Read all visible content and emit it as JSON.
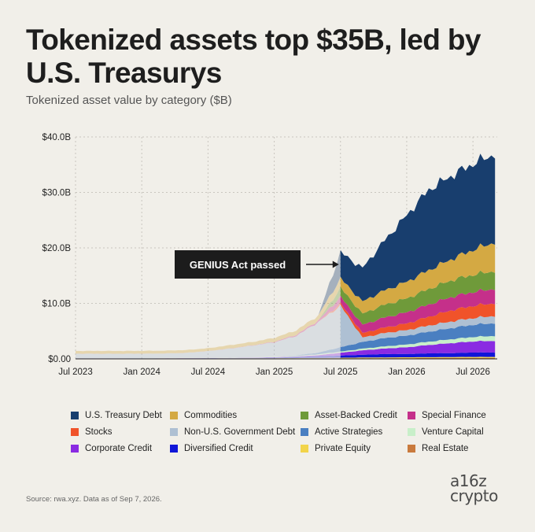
{
  "title": "Tokenized assets top $35B, led by U.S. Treasurys",
  "subtitle": "Tokenized asset value by category ($B)",
  "source": "Source: rwa.xyz. Data as of Sep 7, 2026.",
  "brand": {
    "line1": "a16z",
    "line2": "crypto"
  },
  "colors": {
    "background": "#f1efe9",
    "grid": "#c9c6bf",
    "annotation_bg": "#1c1c1c",
    "annotation_text": "#ffffff"
  },
  "chart_data": {
    "type": "area",
    "stacked": true,
    "x": [
      "2023-07",
      "2023-09",
      "2023-11",
      "2024-01",
      "2024-03",
      "2024-05",
      "2024-07",
      "2024-09",
      "2024-11",
      "2025-01",
      "2025-03",
      "2025-05",
      "2025-07",
      "2025-09",
      "2025-11",
      "2026-01",
      "2026-03",
      "2026-05",
      "2026-07",
      "2026-09"
    ],
    "x_ticks": [
      "Jul 2023",
      "Jan 2024",
      "Jul 2024",
      "Jan 2025",
      "Jul 2025",
      "Jan 2026",
      "Jul 2026"
    ],
    "y_ticks": [
      "$0.00",
      "$10.0B",
      "$20.0B",
      "$30.0B",
      "$40.0B"
    ],
    "ylim": [
      0,
      40
    ],
    "highlight_from": "2025-07",
    "annotation": {
      "text": "GENIUS Act passed",
      "x": "2025-07"
    },
    "series": [
      {
        "name": "Real Estate",
        "color": "#c97a3d",
        "values": [
          0.05,
          0.05,
          0.05,
          0.05,
          0.05,
          0.05,
          0.06,
          0.06,
          0.06,
          0.07,
          0.08,
          0.1,
          0.1,
          0.12,
          0.12,
          0.13,
          0.14,
          0.15,
          0.15,
          0.15
        ]
      },
      {
        "name": "Private Equity",
        "color": "#f2d44a",
        "values": [
          0.02,
          0.02,
          0.02,
          0.02,
          0.03,
          0.03,
          0.03,
          0.04,
          0.04,
          0.05,
          0.06,
          0.08,
          0.1,
          0.12,
          0.14,
          0.15,
          0.16,
          0.18,
          0.2,
          0.2
        ]
      },
      {
        "name": "Diversified Credit",
        "color": "#1016d8",
        "values": [
          0.02,
          0.02,
          0.02,
          0.03,
          0.03,
          0.04,
          0.05,
          0.06,
          0.08,
          0.1,
          0.2,
          0.3,
          0.4,
          0.5,
          0.6,
          0.6,
          0.7,
          0.7,
          0.8,
          0.8
        ]
      },
      {
        "name": "Corporate Credit",
        "color": "#8a2be2",
        "values": [
          0.01,
          0.01,
          0.01,
          0.01,
          0.02,
          0.02,
          0.02,
          0.03,
          0.05,
          0.08,
          0.1,
          0.2,
          0.5,
          0.8,
          1.0,
          1.2,
          1.5,
          1.8,
          2.0,
          2.1
        ]
      },
      {
        "name": "Venture Capital",
        "color": "#c8efc9",
        "values": [
          0.02,
          0.02,
          0.02,
          0.02,
          0.03,
          0.03,
          0.04,
          0.05,
          0.06,
          0.08,
          0.1,
          0.15,
          0.2,
          0.3,
          0.4,
          0.5,
          0.6,
          0.7,
          0.8,
          0.9
        ]
      },
      {
        "name": "Active Strategies",
        "color": "#4a7fc1",
        "values": [
          0,
          0,
          0,
          0,
          0,
          0,
          0,
          0,
          0,
          0,
          0.1,
          0.3,
          0.8,
          1.2,
          1.5,
          1.6,
          1.8,
          2.0,
          2.2,
          2.3
        ]
      },
      {
        "name": "Non-U.S. Government Debt",
        "color": "#aec0d3",
        "values": [
          0.8,
          0.8,
          0.8,
          0.8,
          0.8,
          0.9,
          1.2,
          1.6,
          2.1,
          2.6,
          3.5,
          5.5,
          7.5,
          0.8,
          0.9,
          1.0,
          1.1,
          1.2,
          1.2,
          1.3
        ]
      },
      {
        "name": "Stocks",
        "color": "#f0532a",
        "values": [
          0,
          0,
          0,
          0,
          0,
          0,
          0,
          0,
          0,
          0,
          0,
          0,
          0.4,
          0.8,
          1.0,
          1.2,
          1.6,
          2.0,
          2.2,
          2.3
        ]
      },
      {
        "name": "Special Finance",
        "color": "#c5308a",
        "values": [
          0.01,
          0.01,
          0.01,
          0.01,
          0.01,
          0.02,
          0.02,
          0.03,
          0.05,
          0.1,
          0.2,
          0.3,
          1.2,
          1.5,
          1.8,
          2.0,
          2.2,
          2.4,
          2.5,
          2.6
        ]
      },
      {
        "name": "Asset-Backed Credit",
        "color": "#6f9a3a",
        "values": [
          0,
          0,
          0,
          0,
          0,
          0,
          0,
          0,
          0,
          0,
          0,
          0,
          1.6,
          2.0,
          2.3,
          2.5,
          2.8,
          3.0,
          3.1,
          3.2
        ]
      },
      {
        "name": "Commodities",
        "color": "#d4a943",
        "values": [
          0.5,
          0.5,
          0.5,
          0.5,
          0.5,
          0.5,
          0.5,
          0.6,
          0.6,
          0.7,
          0.8,
          0.9,
          1.7,
          2.2,
          2.6,
          3.0,
          3.4,
          3.8,
          4.5,
          5.2
        ]
      },
      {
        "name": "U.S. Treasury Debt",
        "color": "#183e6e",
        "values": [
          0,
          0,
          0,
          0,
          0,
          0,
          0,
          0,
          0,
          0,
          0,
          0,
          4.7,
          6.0,
          9.0,
          12.0,
          14.5,
          15.0,
          15.5,
          15.9
        ]
      }
    ],
    "legend_order": [
      "U.S. Treasury Debt",
      "Commodities",
      "Asset-Backed Credit",
      "Special Finance",
      "Stocks",
      "Non-U.S. Government Debt",
      "Active Strategies",
      "Venture Capital",
      "Corporate Credit",
      "Diversified Credit",
      "Private Equity",
      "Real Estate"
    ]
  }
}
